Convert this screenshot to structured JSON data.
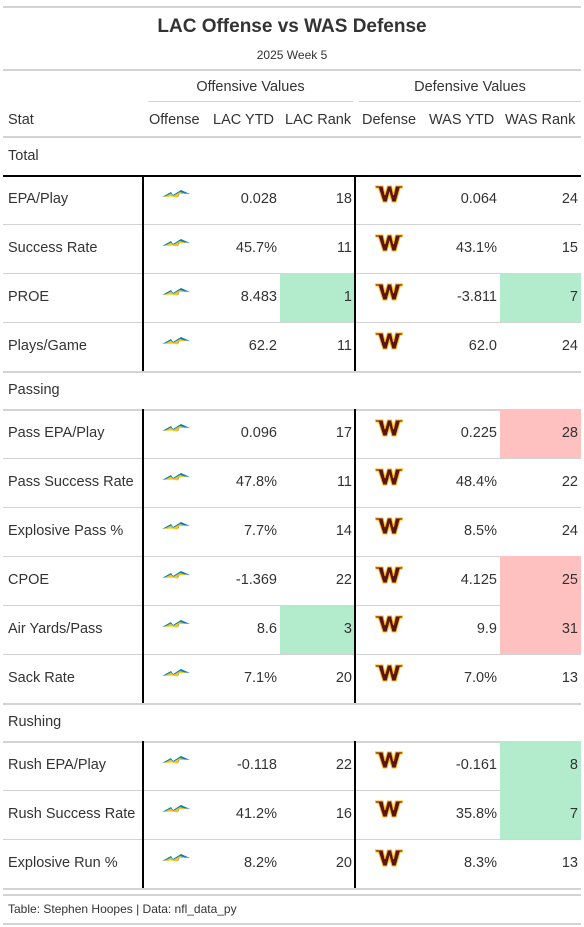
{
  "title": "LAC Offense vs WAS Defense",
  "subtitle": "2025 Week 5",
  "spanners": {
    "offense": "Offensive Values",
    "defense": "Defensive Values"
  },
  "columns": {
    "stat": "Stat",
    "offense": "Offense",
    "lac_ytd": "LAC YTD",
    "lac_rank": "LAC Rank",
    "defense": "Defense",
    "was_ytd": "WAS YTD",
    "was_rank": "WAS Rank"
  },
  "colors": {
    "good": "#b3ebcd",
    "bad": "#ffc0c0",
    "lac_blue": "#0080c6",
    "lac_gold": "#ffc20e",
    "was_burgundy": "#5a1414",
    "was_gold": "#ffb612"
  },
  "icons": {
    "offense": "chargers-bolt-logo-icon",
    "defense": "commanders-w-logo-icon"
  },
  "footer": "Table: Stephen Hoopes | Data: nfl_data_py",
  "chart_data": {
    "type": "table",
    "groups": [
      {
        "name": "Total",
        "rows": [
          {
            "stat": "EPA/Play",
            "lac_ytd": "0.028",
            "lac_rank": 18,
            "was_ytd": "0.064",
            "was_rank": 24,
            "lac_highlight": "",
            "was_highlight": ""
          },
          {
            "stat": "Success Rate",
            "lac_ytd": "45.7%",
            "lac_rank": 11,
            "was_ytd": "43.1%",
            "was_rank": 15,
            "lac_highlight": "",
            "was_highlight": ""
          },
          {
            "stat": "PROE",
            "lac_ytd": "8.483",
            "lac_rank": 1,
            "was_ytd": "-3.811",
            "was_rank": 7,
            "lac_highlight": "good",
            "was_highlight": "good"
          },
          {
            "stat": "Plays/Game",
            "lac_ytd": "62.2",
            "lac_rank": 11,
            "was_ytd": "62.0",
            "was_rank": 24,
            "lac_highlight": "",
            "was_highlight": ""
          }
        ]
      },
      {
        "name": "Passing",
        "rows": [
          {
            "stat": "Pass EPA/Play",
            "lac_ytd": "0.096",
            "lac_rank": 17,
            "was_ytd": "0.225",
            "was_rank": 28,
            "lac_highlight": "",
            "was_highlight": "bad"
          },
          {
            "stat": "Pass Success Rate",
            "lac_ytd": "47.8%",
            "lac_rank": 11,
            "was_ytd": "48.4%",
            "was_rank": 22,
            "lac_highlight": "",
            "was_highlight": ""
          },
          {
            "stat": "Explosive Pass %",
            "lac_ytd": "7.7%",
            "lac_rank": 14,
            "was_ytd": "8.5%",
            "was_rank": 24,
            "lac_highlight": "",
            "was_highlight": ""
          },
          {
            "stat": "CPOE",
            "lac_ytd": "-1.369",
            "lac_rank": 22,
            "was_ytd": "4.125",
            "was_rank": 25,
            "lac_highlight": "",
            "was_highlight": "bad"
          },
          {
            "stat": "Air Yards/Pass",
            "lac_ytd": "8.6",
            "lac_rank": 3,
            "was_ytd": "9.9",
            "was_rank": 31,
            "lac_highlight": "good",
            "was_highlight": "bad"
          },
          {
            "stat": "Sack Rate",
            "lac_ytd": "7.1%",
            "lac_rank": 20,
            "was_ytd": "7.0%",
            "was_rank": 13,
            "lac_highlight": "",
            "was_highlight": ""
          }
        ]
      },
      {
        "name": "Rushing",
        "rows": [
          {
            "stat": "Rush EPA/Play",
            "lac_ytd": "-0.118",
            "lac_rank": 22,
            "was_ytd": "-0.161",
            "was_rank": 8,
            "lac_highlight": "",
            "was_highlight": "good"
          },
          {
            "stat": "Rush Success Rate",
            "lac_ytd": "41.2%",
            "lac_rank": 16,
            "was_ytd": "35.8%",
            "was_rank": 7,
            "lac_highlight": "",
            "was_highlight": "good"
          },
          {
            "stat": "Explosive Run %",
            "lac_ytd": "8.2%",
            "lac_rank": 20,
            "was_ytd": "8.3%",
            "was_rank": 13,
            "lac_highlight": "",
            "was_highlight": ""
          }
        ]
      }
    ]
  }
}
